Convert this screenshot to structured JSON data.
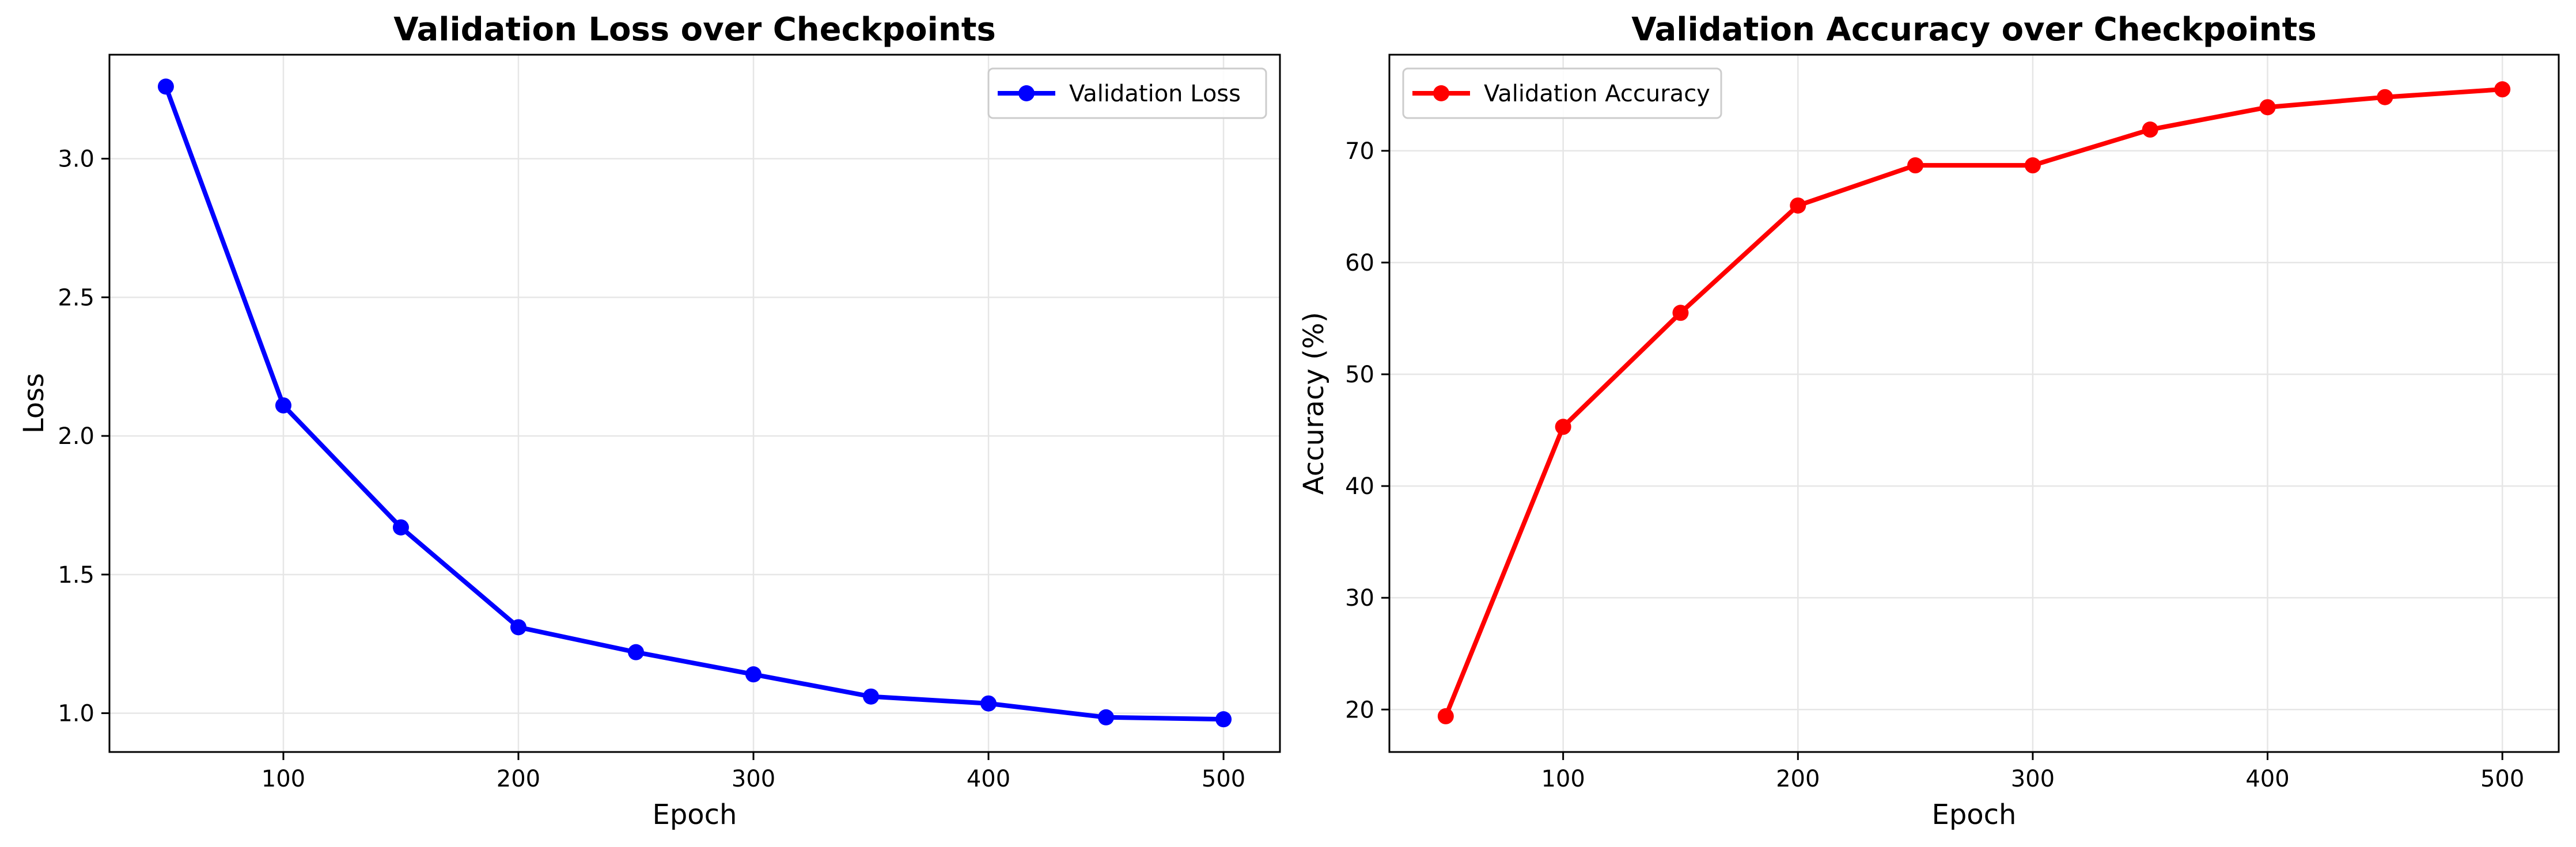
{
  "chart_data": [
    {
      "id": "loss",
      "type": "line",
      "title": "Validation Loss over Checkpoints",
      "xlabel": "Epoch",
      "ylabel": "Loss",
      "xlim": [
        26,
        524
      ],
      "ylim": [
        0.86,
        3.375
      ],
      "xticks": [
        100,
        200,
        300,
        400,
        500
      ],
      "yticks": [
        1.0,
        1.5,
        2.0,
        2.5,
        3.0
      ],
      "ytick_labels": [
        "1.0",
        "1.5",
        "2.0",
        "2.5",
        "3.0"
      ],
      "grid": true,
      "legend_position": "upper right",
      "x": [
        50,
        100,
        150,
        200,
        250,
        300,
        350,
        400,
        450,
        500
      ],
      "series": [
        {
          "name": "Validation Loss",
          "color": "#0000ff",
          "marker": "circle",
          "values": [
            3.26,
            2.11,
            1.67,
            1.31,
            1.22,
            1.14,
            1.06,
            1.035,
            0.985,
            0.978
          ]
        }
      ]
    },
    {
      "id": "accuracy",
      "type": "line",
      "title": "Validation Accuracy over Checkpoints",
      "xlabel": "Epoch",
      "ylabel": "Accuracy (%)",
      "xlim": [
        26,
        524
      ],
      "ylim": [
        16.2,
        78.6
      ],
      "xticks": [
        100,
        200,
        300,
        400,
        500
      ],
      "yticks": [
        20,
        30,
        40,
        50,
        60,
        70
      ],
      "ytick_labels": [
        "20",
        "30",
        "40",
        "50",
        "60",
        "70"
      ],
      "grid": true,
      "legend_position": "upper left",
      "x": [
        50,
        100,
        150,
        200,
        250,
        300,
        350,
        400,
        450,
        500
      ],
      "series": [
        {
          "name": "Validation Accuracy",
          "color": "#ff0000",
          "marker": "circle",
          "values": [
            19.4,
            45.3,
            55.5,
            65.1,
            68.7,
            68.7,
            71.9,
            73.9,
            74.8,
            75.5
          ]
        }
      ]
    }
  ]
}
